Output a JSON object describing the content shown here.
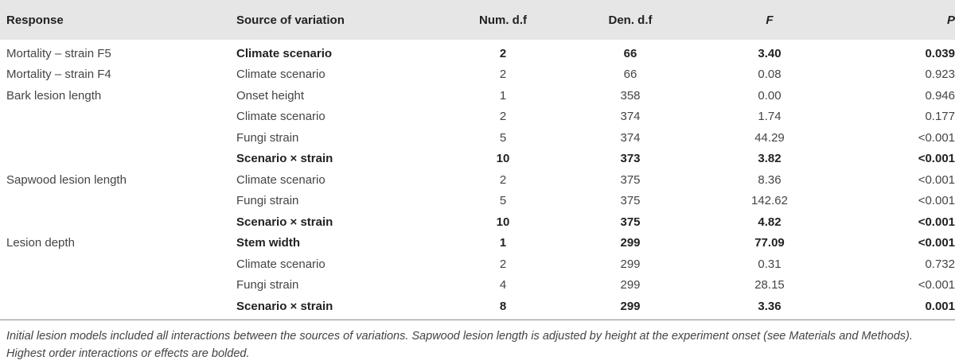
{
  "table": {
    "headers": {
      "response": "Response",
      "source": "Source of variation",
      "num_df": "Num. d.f",
      "den_df": "Den. d.f",
      "f": "F",
      "p": "P"
    },
    "rows": [
      {
        "response": "Mortality – strain F5",
        "source": "Climate scenario",
        "num_df": "2",
        "den_df": "66",
        "f": "3.40",
        "p": "0.039",
        "bold": true
      },
      {
        "response": "Mortality – strain F4",
        "source": "Climate scenario",
        "num_df": "2",
        "den_df": "66",
        "f": "0.08",
        "p": "0.923",
        "bold": false
      },
      {
        "response": "Bark lesion length",
        "source": "Onset height",
        "num_df": "1",
        "den_df": "358",
        "f": "0.00",
        "p": "0.946",
        "bold": false
      },
      {
        "response": "",
        "source": "Climate scenario",
        "num_df": "2",
        "den_df": "374",
        "f": "1.74",
        "p": "0.177",
        "bold": false
      },
      {
        "response": "",
        "source": "Fungi strain",
        "num_df": "5",
        "den_df": "374",
        "f": "44.29",
        "p": "<0.001",
        "bold": false
      },
      {
        "response": "",
        "source": "Scenario × strain",
        "num_df": "10",
        "den_df": "373",
        "f": "3.82",
        "p": "<0.001",
        "bold": true
      },
      {
        "response": "Sapwood lesion length",
        "source": "Climate scenario",
        "num_df": "2",
        "den_df": "375",
        "f": "8.36",
        "p": "<0.001",
        "bold": false
      },
      {
        "response": "",
        "source": "Fungi strain",
        "num_df": "5",
        "den_df": "375",
        "f": "142.62",
        "p": "<0.001",
        "bold": false
      },
      {
        "response": "",
        "source": "Scenario × strain",
        "num_df": "10",
        "den_df": "375",
        "f": "4.82",
        "p": "<0.001",
        "bold": true
      },
      {
        "response": "Lesion depth",
        "source": "Stem width",
        "num_df": "1",
        "den_df": "299",
        "f": "77.09",
        "p": "<0.001",
        "bold": true
      },
      {
        "response": "",
        "source": "Climate scenario",
        "num_df": "2",
        "den_df": "299",
        "f": "0.31",
        "p": "0.732",
        "bold": false
      },
      {
        "response": "",
        "source": "Fungi strain",
        "num_df": "4",
        "den_df": "299",
        "f": "28.15",
        "p": "<0.001",
        "bold": false
      },
      {
        "response": "",
        "source": "Scenario × strain",
        "num_df": "8",
        "den_df": "299",
        "f": "3.36",
        "p": "0.001",
        "bold": true
      }
    ]
  },
  "footnote": "Initial lesion models included all interactions between the sources of variations. Sapwood lesion length is adjusted by height at the experiment onset (see Materials and Methods). Highest order interactions or effects are bolded."
}
